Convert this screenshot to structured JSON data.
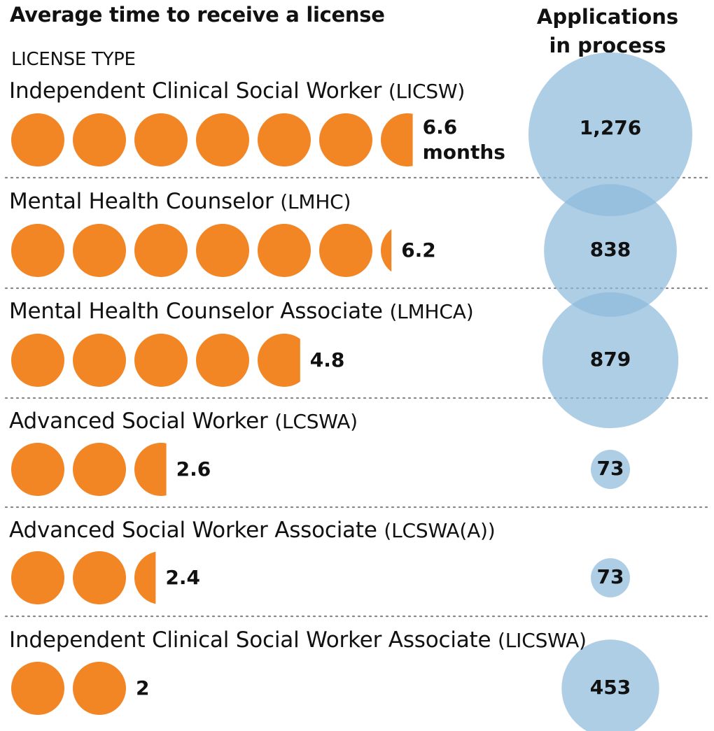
{
  "header": {
    "title": "Average time to receive a license",
    "subhead": "LICENSE TYPE",
    "right_title_line1": "Applications",
    "right_title_line2": "in process"
  },
  "colors": {
    "months_circle": "#f28524",
    "applications_circle": "#8fbbdc",
    "divider": "#888888"
  },
  "chart_data": {
    "type": "pictogram",
    "title": "Average time to receive a license",
    "unit": "months",
    "category_axis_label": "LICENSE TYPE",
    "secondary_measure": "Applications in process",
    "rows": [
      {
        "name": "Independent Clinical Social Worker",
        "abbr": "(LICSW)",
        "months": 6.6,
        "months_label": "6.6",
        "unit_label": "months",
        "applications": 1276,
        "applications_label": "1,276"
      },
      {
        "name": "Mental Health Counselor",
        "abbr": "(LMHC)",
        "months": 6.2,
        "months_label": "6.2",
        "unit_label": "",
        "applications": 838,
        "applications_label": "838"
      },
      {
        "name": "Mental Health Counselor Associate",
        "abbr": "(LMHCA)",
        "months": 4.8,
        "months_label": "4.8",
        "unit_label": "",
        "applications": 879,
        "applications_label": "879"
      },
      {
        "name": "Advanced Social Worker",
        "abbr": "(LCSWA)",
        "months": 2.6,
        "months_label": "2.6",
        "unit_label": "",
        "applications": 73,
        "applications_label": "73"
      },
      {
        "name": "Advanced Social Worker Associate",
        "abbr": "(LCSWA(A))",
        "months": 2.4,
        "months_label": "2.4",
        "unit_label": "",
        "applications": 73,
        "applications_label": "73"
      },
      {
        "name": "Independent Clinical Social Worker Associate",
        "abbr": "(LICSWA)",
        "months": 2,
        "months_label": "2",
        "unit_label": "",
        "applications": 453,
        "applications_label": "453"
      }
    ]
  }
}
